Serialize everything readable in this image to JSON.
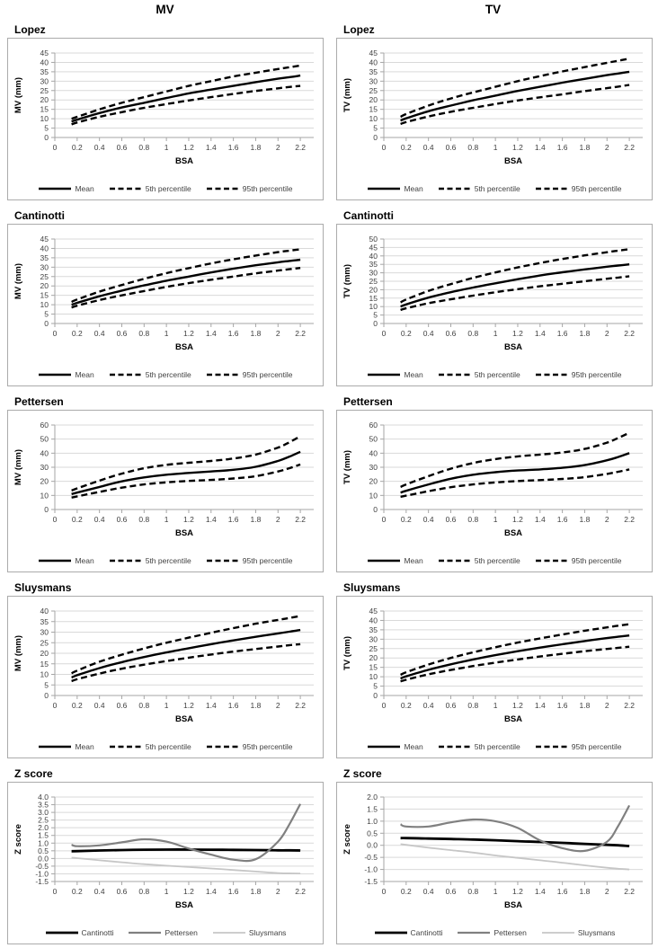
{
  "figure": {
    "column_headers": [
      {
        "label": "MV"
      },
      {
        "label": "TV"
      }
    ]
  },
  "styles": {
    "grid_color": "#d9d9d9",
    "axis_color": "#a6a6a6",
    "tick_text_color": "#3f3f3f",
    "mean_black": "#000000",
    "pettersen_gray": "#808080",
    "sluysmans_light_gray": "#c6c6c6"
  },
  "chart_data": [
    {
      "id": "lopez-mv",
      "panel_title": "Lopez",
      "type": "line",
      "xlabel": "BSA",
      "ylabel": "MV (mm)",
      "xlim": [
        0,
        2.32
      ],
      "xticks": [
        0,
        0.2,
        0.4,
        0.6,
        0.8,
        1,
        1.2,
        1.4,
        1.6,
        1.8,
        2,
        2.2
      ],
      "ylim": [
        0,
        45
      ],
      "ytick_step": 5,
      "ytick_decimals": 0,
      "grid": "horizontal",
      "legend_position": "bottom",
      "x": [
        0.15,
        0.2,
        0.4,
        0.6,
        0.8,
        1,
        1.2,
        1.4,
        1.6,
        1.8,
        2,
        2.1,
        2.2
      ],
      "series": [
        {
          "name": "Mean",
          "color": "#000000",
          "dash": "solid",
          "width": 2.4,
          "values": [
            8.5,
            9.5,
            13,
            16,
            18.5,
            21,
            23.5,
            25.5,
            27.5,
            29.5,
            31.3,
            32.1,
            33
          ]
        },
        {
          "name": "5th percentile",
          "color": "#000000",
          "dash": "dashed",
          "width": 2.4,
          "values": [
            7,
            8,
            11,
            13.5,
            15.8,
            17.8,
            19.7,
            21.5,
            23.2,
            24.8,
            26.2,
            26.9,
            27.5
          ]
        },
        {
          "name": "95th percentile",
          "color": "#000000",
          "dash": "dashed",
          "width": 2.4,
          "values": [
            10,
            11,
            15,
            18.5,
            21.5,
            24.5,
            27.5,
            30,
            32.5,
            34.5,
            36.5,
            37.4,
            38.3
          ]
        }
      ]
    },
    {
      "id": "lopez-tv",
      "panel_title": "Lopez",
      "type": "line",
      "xlabel": "BSA",
      "ylabel": "TV (mm)",
      "xlim": [
        0,
        2.32
      ],
      "xticks": [
        0,
        0.2,
        0.4,
        0.6,
        0.8,
        1,
        1.2,
        1.4,
        1.6,
        1.8,
        2,
        2.2
      ],
      "ylim": [
        0,
        45
      ],
      "ytick_step": 5,
      "ytick_decimals": 0,
      "grid": "horizontal",
      "legend_position": "bottom",
      "x": [
        0.15,
        0.2,
        0.4,
        0.6,
        0.8,
        1,
        1.2,
        1.4,
        1.6,
        1.8,
        2,
        2.1,
        2.2
      ],
      "series": [
        {
          "name": "Mean",
          "color": "#000000",
          "dash": "solid",
          "width": 2.4,
          "values": [
            9,
            10.2,
            14,
            17,
            19.8,
            22.3,
            24.8,
            27,
            29.2,
            31.2,
            33.2,
            34.1,
            35
          ]
        },
        {
          "name": "5th percentile",
          "color": "#000000",
          "dash": "dashed",
          "width": 2.4,
          "values": [
            7.2,
            8.2,
            11.2,
            13.7,
            15.8,
            17.8,
            19.7,
            21.4,
            23,
            24.7,
            26.3,
            27.1,
            28
          ]
        },
        {
          "name": "95th percentile",
          "color": "#000000",
          "dash": "dashed",
          "width": 2.4,
          "values": [
            11,
            12.5,
            17,
            20.8,
            24,
            27,
            30,
            32.7,
            35.2,
            37.5,
            39.8,
            40.9,
            42
          ]
        }
      ]
    },
    {
      "id": "cantinotti-mv",
      "panel_title": "Cantinotti",
      "type": "line",
      "xlabel": "BSA",
      "ylabel": "MV (mm)",
      "xlim": [
        0,
        2.32
      ],
      "xticks": [
        0,
        0.2,
        0.4,
        0.6,
        0.8,
        1,
        1.2,
        1.4,
        1.6,
        1.8,
        2,
        2.2
      ],
      "ylim": [
        0,
        45
      ],
      "ytick_step": 5,
      "ytick_decimals": 0,
      "grid": "horizontal",
      "legend_position": "bottom",
      "x": [
        0.15,
        0.2,
        0.4,
        0.6,
        0.8,
        1,
        1.2,
        1.4,
        1.6,
        1.8,
        2,
        2.1,
        2.2
      ],
      "series": [
        {
          "name": "Mean",
          "color": "#000000",
          "dash": "solid",
          "width": 2.4,
          "values": [
            10,
            11,
            14.5,
            17.5,
            20.3,
            22.8,
            25,
            27.2,
            29.2,
            31,
            32.6,
            33.3,
            34
          ]
        },
        {
          "name": "5th percentile",
          "color": "#000000",
          "dash": "dashed",
          "width": 2.4,
          "values": [
            8.5,
            9.5,
            12.5,
            15,
            17.3,
            19.5,
            21.5,
            23.3,
            25,
            26.7,
            28.2,
            28.9,
            29.6
          ]
        },
        {
          "name": "95th percentile",
          "color": "#000000",
          "dash": "dashed",
          "width": 2.4,
          "values": [
            11.5,
            12.8,
            17,
            20.5,
            23.8,
            26.8,
            29.5,
            32,
            34.2,
            36.2,
            38,
            38.8,
            39.5
          ]
        }
      ]
    },
    {
      "id": "cantinotti-tv",
      "panel_title": "Cantinotti",
      "type": "line",
      "xlabel": "BSA",
      "ylabel": "TV (mm)",
      "xlim": [
        0,
        2.32
      ],
      "xticks": [
        0,
        0.2,
        0.4,
        0.6,
        0.8,
        1,
        1.2,
        1.4,
        1.6,
        1.8,
        2,
        2.2
      ],
      "ylim": [
        0,
        50
      ],
      "ytick_step": 5,
      "ytick_decimals": 0,
      "grid": "horizontal",
      "legend_position": "bottom",
      "x": [
        0.15,
        0.2,
        0.4,
        0.6,
        0.8,
        1,
        1.2,
        1.4,
        1.6,
        1.8,
        2,
        2.1,
        2.2
      ],
      "series": [
        {
          "name": "Mean",
          "color": "#000000",
          "dash": "solid",
          "width": 2.4,
          "values": [
            10,
            11.3,
            15.3,
            18.5,
            21.3,
            23.8,
            26.2,
            28.4,
            30.3,
            32,
            33.6,
            34.3,
            35
          ]
        },
        {
          "name": "5th percentile",
          "color": "#000000",
          "dash": "dashed",
          "width": 2.4,
          "values": [
            8,
            9,
            12,
            14.3,
            16.5,
            18.5,
            20.3,
            22,
            23.5,
            25,
            26.5,
            27.2,
            28
          ]
        },
        {
          "name": "95th percentile",
          "color": "#000000",
          "dash": "dashed",
          "width": 2.4,
          "values": [
            12.5,
            14.2,
            19.3,
            23.3,
            27,
            30.2,
            33.2,
            35.8,
            38.2,
            40.3,
            42.2,
            43.1,
            44
          ]
        }
      ]
    },
    {
      "id": "pettersen-mv",
      "panel_title": "Pettersen",
      "type": "line",
      "xlabel": "BSA",
      "ylabel": "MV (mm)",
      "xlim": [
        0,
        2.32
      ],
      "xticks": [
        0,
        0.2,
        0.4,
        0.6,
        0.8,
        1,
        1.2,
        1.4,
        1.6,
        1.8,
        2,
        2.2
      ],
      "ylim": [
        0,
        60
      ],
      "ytick_step": 10,
      "ytick_decimals": 0,
      "grid": "horizontal",
      "legend_position": "bottom",
      "x": [
        0.15,
        0.2,
        0.4,
        0.6,
        0.8,
        1,
        1.2,
        1.4,
        1.6,
        1.8,
        2,
        2.1,
        2.2
      ],
      "series": [
        {
          "name": "Mean",
          "color": "#000000",
          "dash": "solid",
          "width": 2.4,
          "values": [
            11,
            12,
            16,
            20,
            22.8,
            24.7,
            26,
            27,
            28.2,
            30.3,
            34.5,
            37.5,
            41
          ]
        },
        {
          "name": "5th percentile",
          "color": "#000000",
          "dash": "dashed",
          "width": 2.4,
          "values": [
            8.5,
            9.3,
            12.5,
            15.5,
            17.8,
            19.3,
            20.3,
            21,
            22,
            23.7,
            27,
            29.3,
            32
          ]
        },
        {
          "name": "95th percentile",
          "color": "#000000",
          "dash": "dashed",
          "width": 2.4,
          "values": [
            13.5,
            15,
            20.5,
            25.5,
            29.3,
            31.7,
            33.2,
            34.5,
            36.2,
            39,
            44,
            47.7,
            52
          ]
        }
      ]
    },
    {
      "id": "pettersen-tv",
      "panel_title": "Pettersen",
      "type": "line",
      "xlabel": "BSA",
      "ylabel": "TV (mm)",
      "xlim": [
        0,
        2.32
      ],
      "xticks": [
        0,
        0.2,
        0.4,
        0.6,
        0.8,
        1,
        1.2,
        1.4,
        1.6,
        1.8,
        2,
        2.2
      ],
      "ylim": [
        0,
        60
      ],
      "ytick_step": 10,
      "ytick_decimals": 0,
      "grid": "horizontal",
      "legend_position": "bottom",
      "x": [
        0.15,
        0.2,
        0.4,
        0.6,
        0.8,
        1,
        1.2,
        1.4,
        1.6,
        1.8,
        2,
        2.1,
        2.2
      ],
      "series": [
        {
          "name": "Mean",
          "color": "#000000",
          "dash": "solid",
          "width": 2.4,
          "values": [
            12,
            13.3,
            17.8,
            21.8,
            24.7,
            26.5,
            27.7,
            28.5,
            29.6,
            31.5,
            35,
            37.3,
            40
          ]
        },
        {
          "name": "5th percentile",
          "color": "#000000",
          "dash": "dashed",
          "width": 2.4,
          "values": [
            9,
            9.8,
            13,
            15.8,
            17.8,
            19.2,
            20.2,
            20.9,
            21.7,
            23,
            25.3,
            26.8,
            28.5
          ]
        },
        {
          "name": "95th percentile",
          "color": "#000000",
          "dash": "dashed",
          "width": 2.4,
          "values": [
            16,
            17.8,
            23.7,
            29,
            33,
            35.8,
            37.7,
            39,
            40.5,
            43,
            47.5,
            50.8,
            54.5
          ]
        }
      ]
    },
    {
      "id": "sluysmans-mv",
      "panel_title": "Sluysmans",
      "type": "line",
      "xlabel": "BSA",
      "ylabel": "MV (mm)",
      "xlim": [
        0,
        2.32
      ],
      "xticks": [
        0,
        0.2,
        0.4,
        0.6,
        0.8,
        1,
        1.2,
        1.4,
        1.6,
        1.8,
        2,
        2.2
      ],
      "ylim": [
        0,
        40
      ],
      "ytick_step": 5,
      "ytick_decimals": 0,
      "grid": "horizontal",
      "legend_position": "bottom",
      "x": [
        0.15,
        0.2,
        0.4,
        0.6,
        0.8,
        1,
        1.2,
        1.4,
        1.6,
        1.8,
        2,
        2.1,
        2.2
      ],
      "series": [
        {
          "name": "Mean",
          "color": "#000000",
          "dash": "solid",
          "width": 2.4,
          "values": [
            8.5,
            9.6,
            13,
            15.8,
            18.2,
            20.4,
            22.4,
            24.3,
            26.1,
            27.8,
            29.4,
            30.2,
            31
          ]
        },
        {
          "name": "5th percentile",
          "color": "#000000",
          "dash": "dashed",
          "width": 2.4,
          "values": [
            6.8,
            7.7,
            10.4,
            12.7,
            14.6,
            16.3,
            17.9,
            19.4,
            20.8,
            22,
            23.2,
            23.8,
            24.3
          ]
        },
        {
          "name": "95th percentile",
          "color": "#000000",
          "dash": "dashed",
          "width": 2.4,
          "values": [
            10.5,
            11.8,
            16,
            19.3,
            22.3,
            25,
            27.4,
            29.7,
            31.9,
            34,
            35.8,
            36.7,
            37.6
          ]
        }
      ]
    },
    {
      "id": "sluysmans-tv",
      "panel_title": "Sluysmans",
      "type": "line",
      "xlabel": "BSA",
      "ylabel": "TV (mm)",
      "xlim": [
        0,
        2.32
      ],
      "xticks": [
        0,
        0.2,
        0.4,
        0.6,
        0.8,
        1,
        1.2,
        1.4,
        1.6,
        1.8,
        2,
        2.2
      ],
      "ylim": [
        0,
        45
      ],
      "ytick_step": 5,
      "ytick_decimals": 0,
      "grid": "horizontal",
      "legend_position": "bottom",
      "x": [
        0.15,
        0.2,
        0.4,
        0.6,
        0.8,
        1,
        1.2,
        1.4,
        1.6,
        1.8,
        2,
        2.1,
        2.2
      ],
      "series": [
        {
          "name": "Mean",
          "color": "#000000",
          "dash": "solid",
          "width": 2.4,
          "values": [
            9,
            10.2,
            13.7,
            16.6,
            19.2,
            21.5,
            23.6,
            25.5,
            27.3,
            29,
            30.6,
            31.3,
            32
          ]
        },
        {
          "name": "5th percentile",
          "color": "#000000",
          "dash": "dashed",
          "width": 2.4,
          "values": [
            7.5,
            8.4,
            11.3,
            13.6,
            15.7,
            17.5,
            19.2,
            20.8,
            22.2,
            23.6,
            24.8,
            25.4,
            26
          ]
        },
        {
          "name": "95th percentile",
          "color": "#000000",
          "dash": "dashed",
          "width": 2.4,
          "values": [
            11,
            12.4,
            16.5,
            20,
            23,
            25.7,
            28.2,
            30.4,
            32.5,
            34.5,
            36.3,
            37.2,
            38
          ]
        }
      ]
    },
    {
      "id": "zscore-mv",
      "panel_title": "Z score",
      "type": "line",
      "xlabel": "BSA",
      "ylabel": "Z score",
      "xlim": [
        0,
        2.32
      ],
      "xticks": [
        0,
        0.2,
        0.4,
        0.6,
        0.8,
        1,
        1.2,
        1.4,
        1.6,
        1.8,
        2,
        2.2
      ],
      "ylim": [
        -1.5,
        4.0
      ],
      "ytick_step": 0.5,
      "ytick_decimals": 1,
      "grid": "horizontal",
      "legend_position": "bottom",
      "x": [
        0.15,
        0.2,
        0.4,
        0.6,
        0.8,
        1,
        1.2,
        1.4,
        1.6,
        1.8,
        2,
        2.1,
        2.2
      ],
      "series": [
        {
          "name": "Cantinotti",
          "color": "#000000",
          "dash": "solid",
          "width": 2.8,
          "values": [
            0.47,
            0.48,
            0.52,
            0.55,
            0.57,
            0.58,
            0.58,
            0.57,
            0.56,
            0.55,
            0.53,
            0.53,
            0.52
          ]
        },
        {
          "name": "Pettersen",
          "color": "#808080",
          "dash": "solid",
          "width": 2.2,
          "values": [
            0.9,
            0.8,
            0.85,
            1.05,
            1.25,
            1.1,
            0.65,
            0.25,
            -0.08,
            -0.05,
            1.1,
            2.2,
            3.55
          ]
        },
        {
          "name": "Sluysmans",
          "color": "#c6c6c6",
          "dash": "solid",
          "width": 1.8,
          "values": [
            0.05,
            0.02,
            -0.12,
            -0.25,
            -0.37,
            -0.47,
            -0.56,
            -0.65,
            -0.75,
            -0.85,
            -0.95,
            -0.97,
            -0.98
          ]
        }
      ]
    },
    {
      "id": "zscore-tv",
      "panel_title": "Z score",
      "type": "line",
      "xlabel": "BSA",
      "ylabel": "Z score",
      "xlim": [
        0,
        2.32
      ],
      "xticks": [
        0,
        0.2,
        0.4,
        0.6,
        0.8,
        1,
        1.2,
        1.4,
        1.6,
        1.8,
        2,
        2.2
      ],
      "ylim": [
        -1.5,
        2.0
      ],
      "ytick_step": 0.5,
      "ytick_decimals": 1,
      "grid": "horizontal",
      "legend_position": "bottom",
      "x": [
        0.15,
        0.2,
        0.4,
        0.6,
        0.8,
        1,
        1.2,
        1.4,
        1.6,
        1.8,
        2,
        2.1,
        2.2
      ],
      "series": [
        {
          "name": "Cantinotti",
          "color": "#000000",
          "dash": "solid",
          "width": 2.8,
          "values": [
            0.3,
            0.3,
            0.28,
            0.26,
            0.24,
            0.21,
            0.17,
            0.14,
            0.1,
            0.06,
            0.02,
            0,
            -0.03
          ]
        },
        {
          "name": "Pettersen",
          "color": "#808080",
          "dash": "solid",
          "width": 2.2,
          "values": [
            0.87,
            0.78,
            0.78,
            0.95,
            1.07,
            1.0,
            0.72,
            0.2,
            -0.12,
            -0.23,
            0.15,
            0.8,
            1.65
          ]
        },
        {
          "name": "Sluysmans",
          "color": "#c6c6c6",
          "dash": "solid",
          "width": 1.8,
          "values": [
            0.05,
            0.02,
            -0.1,
            -0.2,
            -0.3,
            -0.42,
            -0.52,
            -0.62,
            -0.72,
            -0.83,
            -0.93,
            -0.97,
            -1.0
          ]
        }
      ]
    }
  ]
}
